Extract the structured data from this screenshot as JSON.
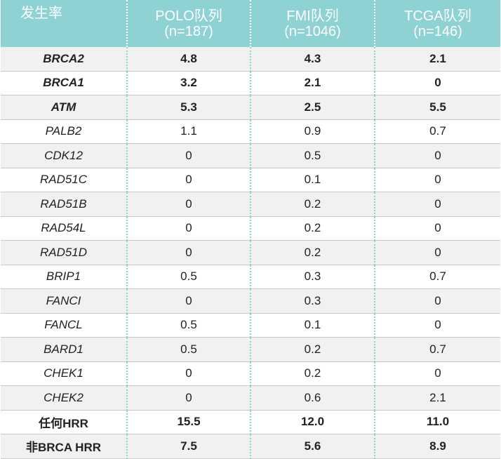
{
  "table": {
    "header": [
      {
        "lines": [
          "发生率"
        ]
      },
      {
        "lines": [
          "POLO队列",
          "(n=187)"
        ]
      },
      {
        "lines": [
          "FMI队列",
          "(n=1046)"
        ]
      },
      {
        "lines": [
          "TCGA队列",
          "(n=146)"
        ]
      }
    ],
    "rows": [
      [
        "BRCA2",
        "4.8",
        "4.3",
        "2.1"
      ],
      [
        "BRCA1",
        "3.2",
        "2.1",
        "0"
      ],
      [
        "ATM",
        "5.3",
        "2.5",
        "5.5"
      ],
      [
        "PALB2",
        "1.1",
        "0.9",
        "0.7"
      ],
      [
        "CDK12",
        "0",
        "0.5",
        "0"
      ],
      [
        "RAD51C",
        "0",
        "0.1",
        "0"
      ],
      [
        "RAD51B",
        "0",
        "0.2",
        "0"
      ],
      [
        "RAD54L",
        "0",
        "0.2",
        "0"
      ],
      [
        "RAD51D",
        "0",
        "0.2",
        "0"
      ],
      [
        "BRIP1",
        "0.5",
        "0.3",
        "0.7"
      ],
      [
        "FANCI",
        "0",
        "0.3",
        "0"
      ],
      [
        "FANCL",
        "0.5",
        "0.1",
        "0"
      ],
      [
        "BARD1",
        "0.5",
        "0.2",
        "0.7"
      ],
      [
        "CHEK1",
        "0",
        "0.2",
        "0"
      ],
      [
        "CHEK2",
        "0",
        "0.6",
        "2.1"
      ],
      [
        "任何HRR",
        "15.5",
        "12.0",
        "11.0"
      ],
      [
        "非BRCA HRR",
        "7.5",
        "5.6",
        "8.9"
      ]
    ]
  }
}
